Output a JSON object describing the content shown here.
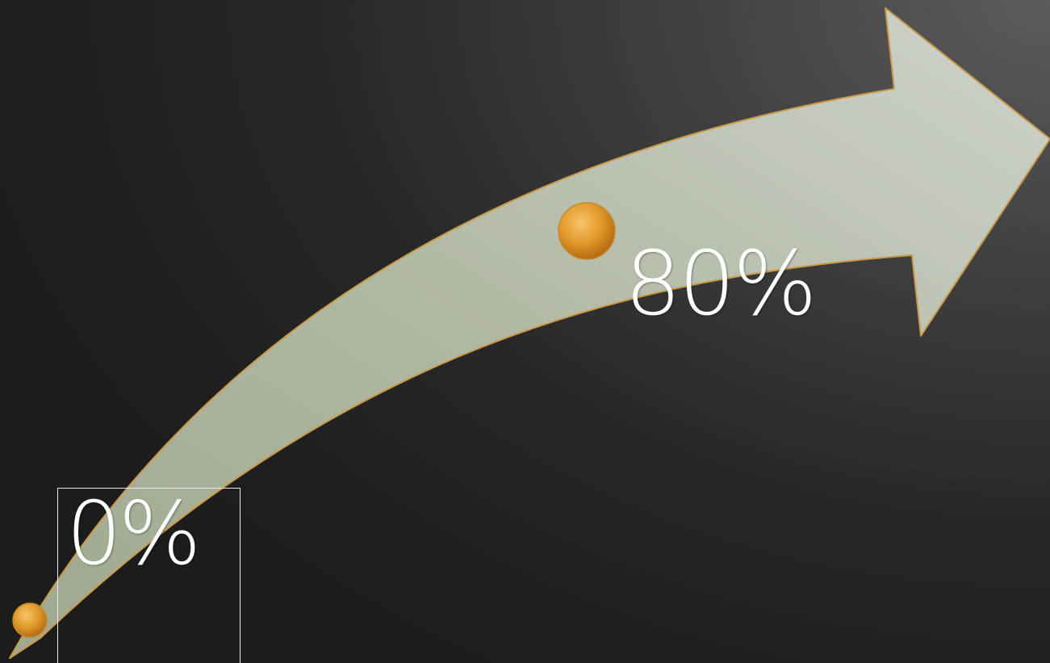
{
  "diagram": {
    "start_label": "0%",
    "end_label": "80%",
    "colors": {
      "arrow_fill": "#b4bca6",
      "arrow_outline": "#c89a4a",
      "marker_fill": "#e8a030",
      "background_light": "#5c5c5c",
      "background_dark": "#1c1c1c",
      "text": "#ffffff"
    }
  }
}
